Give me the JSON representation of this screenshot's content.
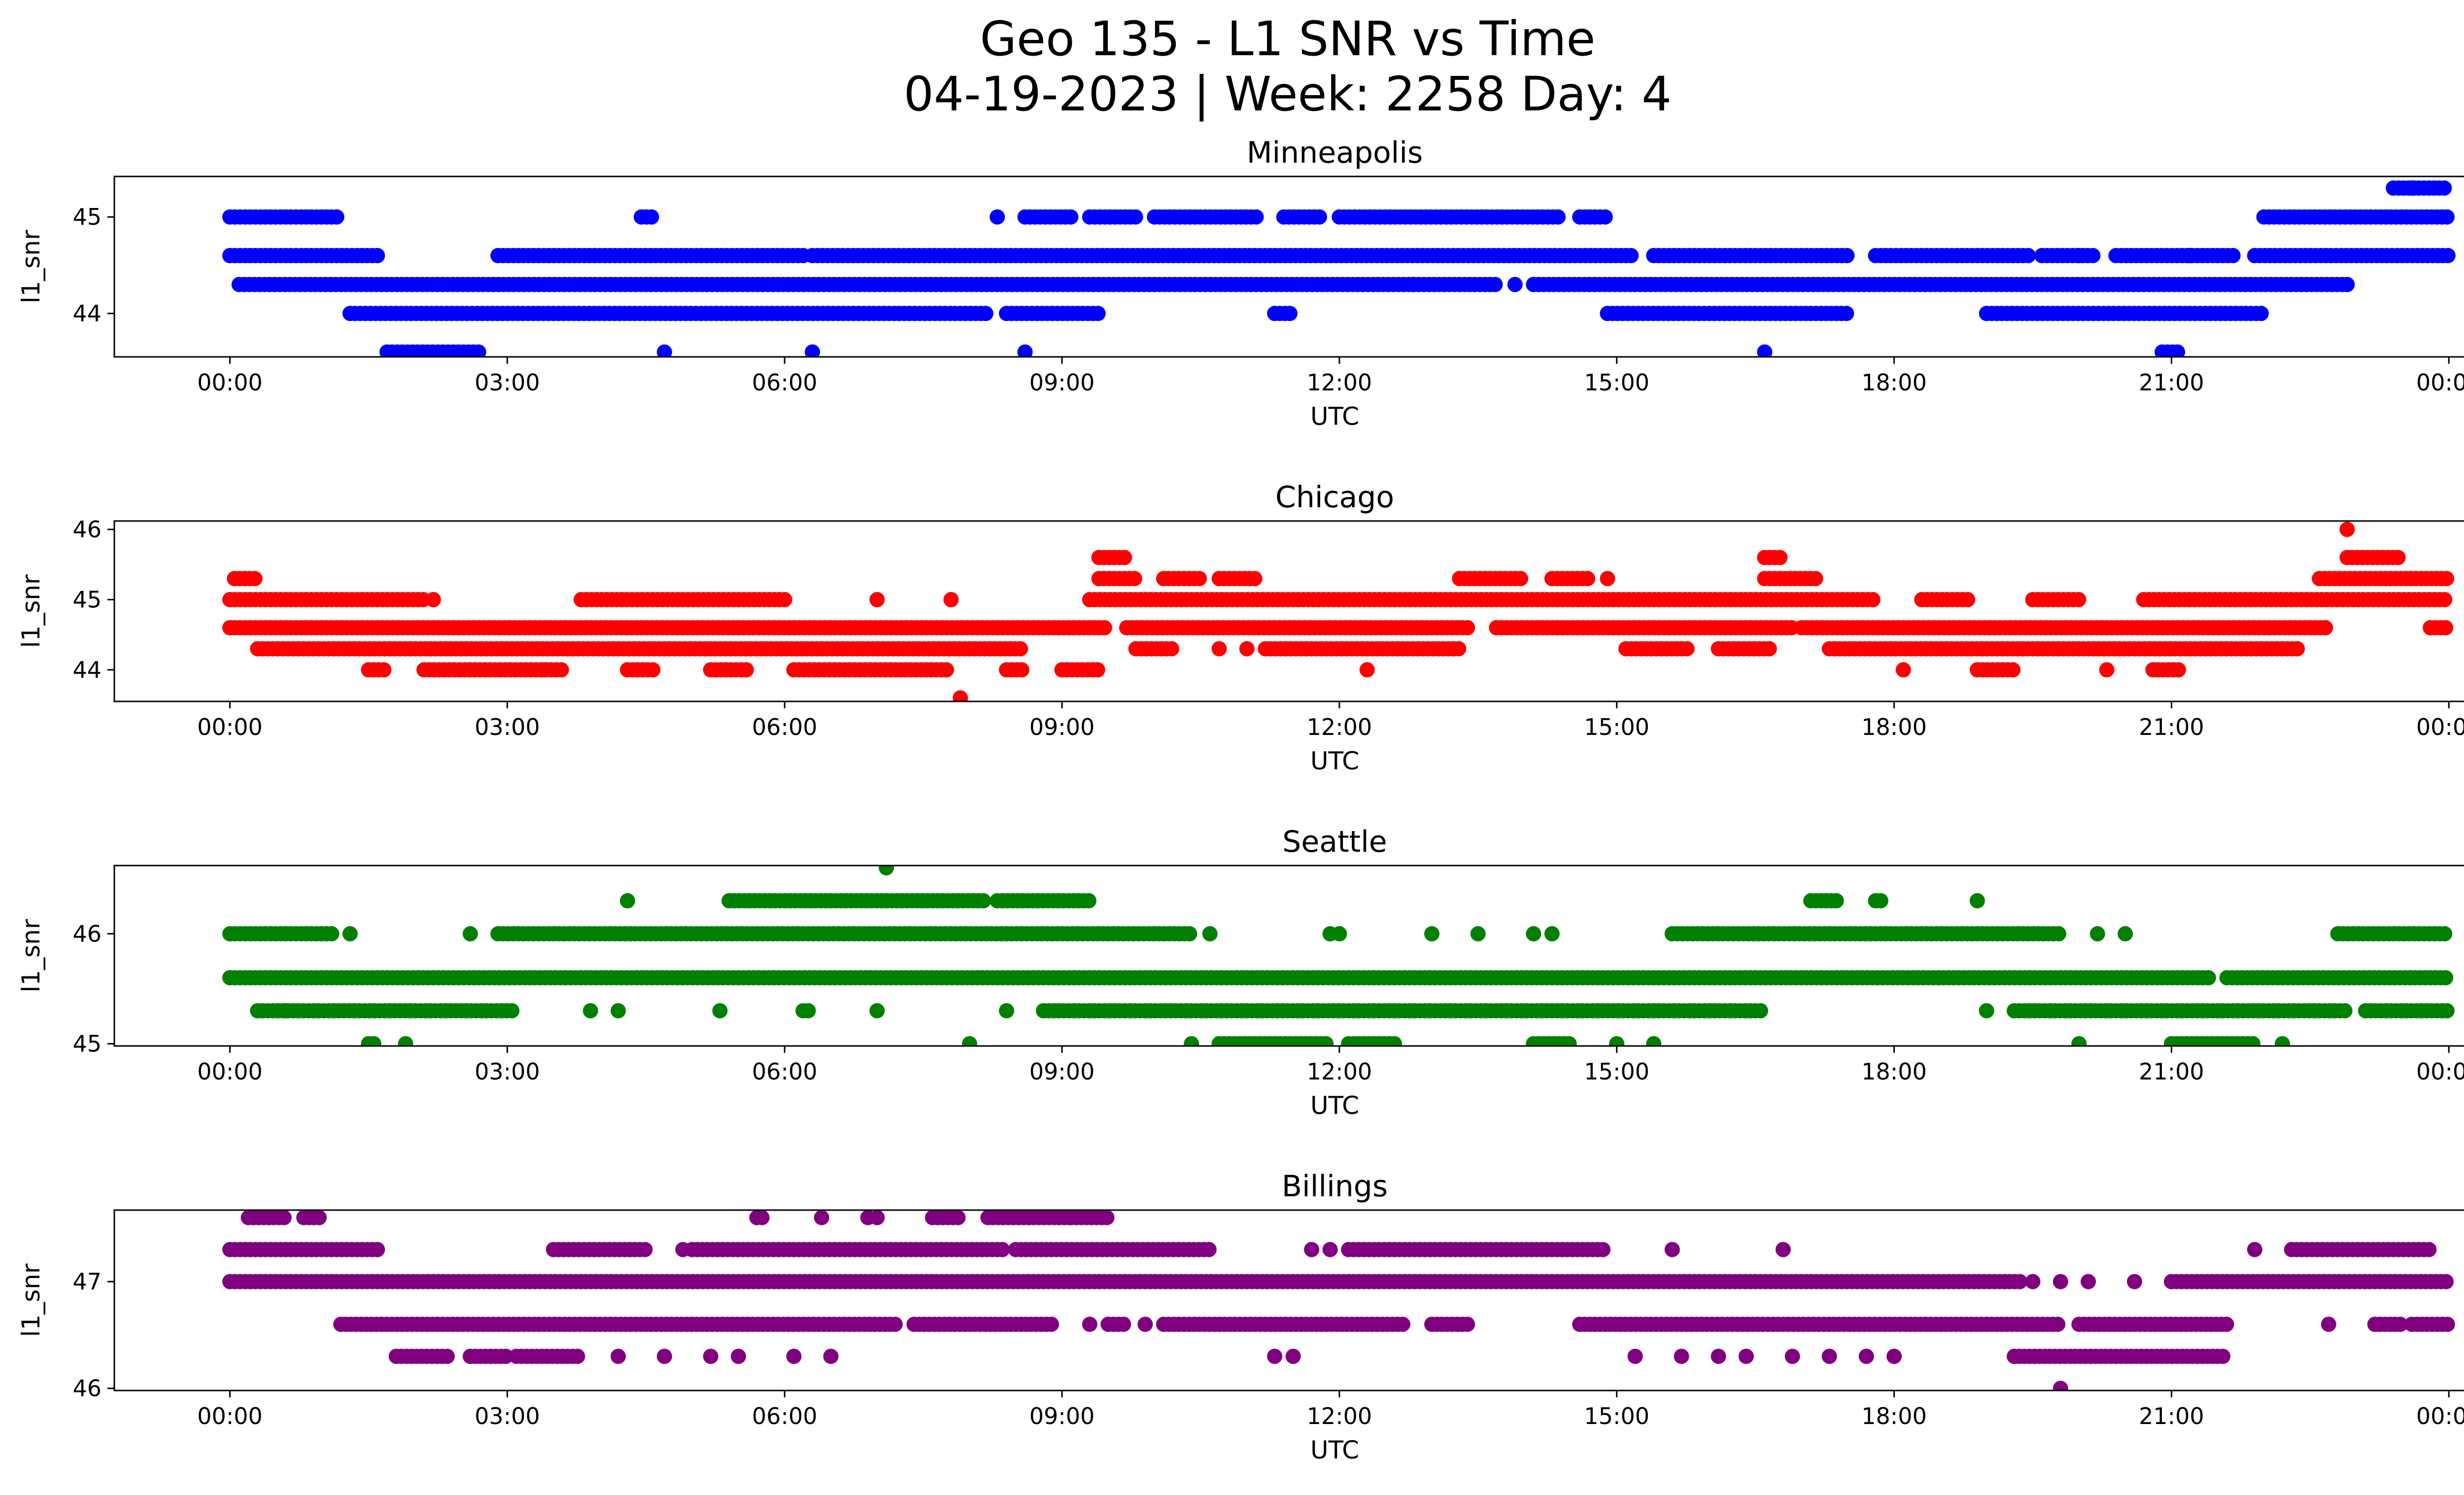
{
  "figure": {
    "title_line1": "Geo 135 - L1 SNR vs Time",
    "title_line2": "04-19-2023 | Week: 2258 Day: 4"
  },
  "chart_data": [
    {
      "type": "scatter",
      "title": "Minneapolis",
      "xlabel": "UTC",
      "ylabel": "l1_snr",
      "color": "#0000ff",
      "xlim": [
        -1.25,
        25.15
      ],
      "ylim": [
        43.55,
        45.42
      ],
      "x_ticks": [
        0,
        3,
        6,
        9,
        12,
        15,
        18,
        21,
        24
      ],
      "x_tick_labels": [
        "00:00",
        "03:00",
        "06:00",
        "09:00",
        "12:00",
        "15:00",
        "18:00",
        "21:00",
        "00:00"
      ],
      "y_ticks": [
        44,
        45
      ],
      "y_tick_labels": [
        "44",
        "45"
      ],
      "segments": [
        {
          "y": 45.0,
          "ranges": [
            [
              0.0,
              1.2
            ],
            [
              4.45,
              4.6
            ],
            [
              8.3,
              8.35
            ],
            [
              8.6,
              9.1
            ],
            [
              9.3,
              9.8
            ],
            [
              10.0,
              11.1
            ],
            [
              11.4,
              11.8
            ],
            [
              12.0,
              14.4
            ],
            [
              14.6,
              14.9
            ],
            [
              22.0,
              24.0
            ]
          ]
        },
        {
          "y": 45.3,
          "ranges": [
            [
              23.4,
              24.0
            ]
          ]
        },
        {
          "y": 44.6,
          "ranges": [
            [
              0.0,
              1.6
            ],
            [
              2.9,
              6.2
            ],
            [
              6.3,
              15.2
            ],
            [
              15.4,
              17.5
            ],
            [
              17.8,
              19.5
            ],
            [
              19.6,
              20.2
            ],
            [
              20.4,
              21.7
            ],
            [
              21.9,
              24.0
            ]
          ]
        },
        {
          "y": 44.3,
          "ranges": [
            [
              0.1,
              13.7
            ],
            [
              14.1,
              22.9
            ]
          ]
        },
        {
          "y": 44.0,
          "ranges": [
            [
              1.3,
              8.2
            ],
            [
              8.4,
              9.4
            ],
            [
              11.3,
              11.5
            ],
            [
              14.9,
              17.5
            ],
            [
              19.0,
              22.0
            ]
          ]
        },
        {
          "y": 43.6,
          "ranges": [
            [
              1.7,
              2.7
            ],
            [
              20.9,
              21.1
            ]
          ]
        }
      ],
      "points": [
        {
          "x": 4.7,
          "y": 43.6
        },
        {
          "x": 6.3,
          "y": 43.6
        },
        {
          "x": 8.6,
          "y": 43.6
        },
        {
          "x": 16.6,
          "y": 43.6
        },
        {
          "x": 12.8,
          "y": 44.3
        },
        {
          "x": 13.9,
          "y": 44.3
        },
        {
          "x": 23.6,
          "y": 45.3
        },
        {
          "x": 20.0,
          "y": 44.6
        },
        {
          "x": 21.2,
          "y": 44.6
        }
      ]
    },
    {
      "type": "scatter",
      "title": "Chicago",
      "xlabel": "UTC",
      "ylabel": "l1_snr",
      "color": "#ff0000",
      "xlim": [
        -1.25,
        25.15
      ],
      "ylim": [
        43.55,
        46.12
      ],
      "x_ticks": [
        0,
        3,
        6,
        9,
        12,
        15,
        18,
        21,
        24
      ],
      "x_tick_labels": [
        "00:00",
        "03:00",
        "06:00",
        "09:00",
        "12:00",
        "15:00",
        "18:00",
        "21:00",
        "00:00"
      ],
      "y_ticks": [
        44,
        45,
        46
      ],
      "y_tick_labels": [
        "44",
        "45",
        "46"
      ],
      "segments": [
        {
          "y": 45.6,
          "ranges": [
            [
              9.4,
              9.7
            ],
            [
              16.6,
              16.8
            ],
            [
              22.9,
              23.5
            ]
          ]
        },
        {
          "y": 45.3,
          "ranges": [
            [
              0.05,
              0.3
            ],
            [
              9.4,
              9.8
            ],
            [
              10.1,
              10.5
            ],
            [
              10.7,
              11.1
            ],
            [
              13.3,
              14.0
            ],
            [
              14.3,
              14.7
            ],
            [
              16.6,
              17.2
            ],
            [
              22.6,
              24.0
            ]
          ]
        },
        {
          "y": 45.0,
          "ranges": [
            [
              0.0,
              2.1
            ],
            [
              3.8,
              6.0
            ],
            [
              9.3,
              17.8
            ],
            [
              18.3,
              18.8
            ],
            [
              19.5,
              20.0
            ],
            [
              20.7,
              22.8
            ],
            [
              22.8,
              24.0
            ]
          ]
        },
        {
          "y": 44.6,
          "ranges": [
            [
              0.0,
              9.5
            ],
            [
              9.7,
              13.4
            ],
            [
              13.7,
              16.9
            ],
            [
              17.0,
              22.7
            ],
            [
              23.8,
              24.0
            ]
          ]
        },
        {
          "y": 44.3,
          "ranges": [
            [
              0.3,
              8.6
            ],
            [
              9.8,
              10.2
            ],
            [
              11.2,
              13.3
            ],
            [
              15.1,
              15.8
            ],
            [
              16.1,
              16.7
            ],
            [
              17.3,
              22.4
            ]
          ]
        },
        {
          "y": 44.0,
          "ranges": [
            [
              1.5,
              1.7
            ],
            [
              2.1,
              3.6
            ],
            [
              4.3,
              4.6
            ],
            [
              5.2,
              5.6
            ],
            [
              6.1,
              7.8
            ],
            [
              8.4,
              8.6
            ],
            [
              9.0,
              9.4
            ],
            [
              18.9,
              19.3
            ],
            [
              20.8,
              21.1
            ]
          ]
        }
      ],
      "points": [
        {
          "x": 7.9,
          "y": 43.6
        },
        {
          "x": 12.3,
          "y": 44.0
        },
        {
          "x": 18.1,
          "y": 44.0
        },
        {
          "x": 20.3,
          "y": 44.0
        },
        {
          "x": 22.9,
          "y": 46.0
        },
        {
          "x": 3.4,
          "y": 44.0
        },
        {
          "x": 10.7,
          "y": 44.3
        },
        {
          "x": 11.0,
          "y": 44.3
        },
        {
          "x": 7.0,
          "y": 45.0
        },
        {
          "x": 7.8,
          "y": 45.0
        },
        {
          "x": 2.2,
          "y": 45.0
        },
        {
          "x": 14.9,
          "y": 45.3
        }
      ]
    },
    {
      "type": "scatter",
      "title": "Seattle",
      "xlabel": "UTC",
      "ylabel": "l1_snr",
      "color": "#008000",
      "xlim": [
        -1.25,
        25.15
      ],
      "ylim": [
        44.98,
        46.62
      ],
      "x_ticks": [
        0,
        3,
        6,
        9,
        12,
        15,
        18,
        21,
        24
      ],
      "x_tick_labels": [
        "00:00",
        "03:00",
        "06:00",
        "09:00",
        "12:00",
        "15:00",
        "18:00",
        "21:00",
        "00:00"
      ],
      "y_ticks": [
        45,
        46
      ],
      "y_tick_labels": [
        "45",
        "46"
      ],
      "segments": [
        {
          "y": 46.6,
          "ranges": [
            [
              7.1,
              7.1
            ]
          ]
        },
        {
          "y": 46.3,
          "ranges": [
            [
              5.4,
              8.2
            ],
            [
              8.3,
              9.3
            ],
            [
              17.1,
              17.4
            ],
            [
              17.8,
              17.9
            ]
          ]
        },
        {
          "y": 46.0,
          "ranges": [
            [
              0.0,
              1.1
            ],
            [
              2.9,
              10.4
            ],
            [
              15.6,
              19.8
            ],
            [
              22.8,
              24.0
            ]
          ]
        },
        {
          "y": 45.6,
          "ranges": [
            [
              0.0,
              21.4
            ],
            [
              21.6,
              24.0
            ]
          ]
        },
        {
          "y": 45.3,
          "ranges": [
            [
              0.3,
              3.1
            ],
            [
              6.2,
              6.3
            ],
            [
              8.8,
              16.6
            ],
            [
              19.3,
              22.9
            ],
            [
              23.1,
              24.0
            ]
          ]
        },
        {
          "y": 45.0,
          "ranges": [
            [
              1.5,
              1.6
            ],
            [
              10.7,
              11.9
            ],
            [
              12.1,
              12.6
            ],
            [
              14.1,
              14.5
            ],
            [
              21.0,
              21.9
            ]
          ]
        }
      ],
      "points": [
        {
          "x": 1.3,
          "y": 46.0
        },
        {
          "x": 2.6,
          "y": 46.0
        },
        {
          "x": 10.6,
          "y": 46.0
        },
        {
          "x": 11.9,
          "y": 46.0
        },
        {
          "x": 12.0,
          "y": 46.0
        },
        {
          "x": 13.0,
          "y": 46.0
        },
        {
          "x": 13.5,
          "y": 46.0
        },
        {
          "x": 14.1,
          "y": 46.0
        },
        {
          "x": 14.3,
          "y": 46.0
        },
        {
          "x": 20.2,
          "y": 46.0
        },
        {
          "x": 20.5,
          "y": 46.0
        },
        {
          "x": 4.3,
          "y": 46.3
        },
        {
          "x": 18.9,
          "y": 46.3
        },
        {
          "x": 0.6,
          "y": 45.3
        },
        {
          "x": 3.9,
          "y": 45.3
        },
        {
          "x": 4.2,
          "y": 45.3
        },
        {
          "x": 5.3,
          "y": 45.3
        },
        {
          "x": 7.0,
          "y": 45.3
        },
        {
          "x": 8.4,
          "y": 45.3
        },
        {
          "x": 19.0,
          "y": 45.3
        },
        {
          "x": 1.9,
          "y": 45.0
        },
        {
          "x": 8.0,
          "y": 45.0
        },
        {
          "x": 10.4,
          "y": 45.0
        },
        {
          "x": 15.0,
          "y": 45.0
        },
        {
          "x": 15.4,
          "y": 45.0
        },
        {
          "x": 20.0,
          "y": 45.0
        },
        {
          "x": 22.2,
          "y": 45.0
        },
        {
          "x": 21.4,
          "y": 45.6
        }
      ]
    },
    {
      "type": "scatter",
      "title": "Billings",
      "xlabel": "UTC",
      "ylabel": "l1_snr",
      "color": "#800080",
      "xlim": [
        -1.25,
        25.15
      ],
      "ylim": [
        45.98,
        47.67
      ],
      "x_ticks": [
        0,
        3,
        6,
        9,
        12,
        15,
        18,
        21,
        24
      ],
      "x_tick_labels": [
        "00:00",
        "03:00",
        "06:00",
        "09:00",
        "12:00",
        "15:00",
        "18:00",
        "21:00",
        "00:00"
      ],
      "y_ticks": [
        46,
        47
      ],
      "y_tick_labels": [
        "46",
        "47"
      ],
      "segments": [
        {
          "y": 47.6,
          "ranges": [
            [
              0.2,
              0.6
            ],
            [
              0.8,
              1.0
            ],
            [
              5.7,
              5.8
            ],
            [
              7.6,
              7.9
            ],
            [
              8.2,
              9.1
            ],
            [
              9.1,
              9.5
            ]
          ]
        },
        {
          "y": 47.3,
          "ranges": [
            [
              0.0,
              1.6
            ],
            [
              3.5,
              4.5
            ],
            [
              5.0,
              8.4
            ],
            [
              8.5,
              10.6
            ],
            [
              12.1,
              14.9
            ],
            [
              22.3,
              23.8
            ]
          ]
        },
        {
          "y": 47.0,
          "ranges": [
            [
              0.0,
              19.4
            ],
            [
              21.0,
              24.0
            ]
          ]
        },
        {
          "y": 46.6,
          "ranges": [
            [
              1.2,
              7.2
            ],
            [
              7.4,
              8.9
            ],
            [
              9.5,
              9.7
            ],
            [
              10.1,
              12.7
            ],
            [
              13.0,
              13.4
            ],
            [
              14.6,
              19.8
            ],
            [
              20.0,
              21.6
            ],
            [
              23.2,
              23.5
            ],
            [
              23.6,
              24.0
            ]
          ]
        },
        {
          "y": 46.3,
          "ranges": [
            [
              1.8,
              2.4
            ],
            [
              2.6,
              3.0
            ],
            [
              3.1,
              3.8
            ],
            [
              19.3,
              21.6
            ]
          ]
        }
      ],
      "points": [
        {
          "x": 4.2,
          "y": 46.3
        },
        {
          "x": 4.7,
          "y": 46.3
        },
        {
          "x": 5.2,
          "y": 46.3
        },
        {
          "x": 5.5,
          "y": 46.3
        },
        {
          "x": 6.1,
          "y": 46.3
        },
        {
          "x": 6.5,
          "y": 46.3
        },
        {
          "x": 11.3,
          "y": 46.3
        },
        {
          "x": 11.5,
          "y": 46.3
        },
        {
          "x": 15.2,
          "y": 46.3
        },
        {
          "x": 15.7,
          "y": 46.3
        },
        {
          "x": 16.1,
          "y": 46.3
        },
        {
          "x": 16.4,
          "y": 46.3
        },
        {
          "x": 16.9,
          "y": 46.3
        },
        {
          "x": 17.3,
          "y": 46.3
        },
        {
          "x": 17.7,
          "y": 46.3
        },
        {
          "x": 18.0,
          "y": 46.3
        },
        {
          "x": 19.8,
          "y": 46.0
        },
        {
          "x": 19.5,
          "y": 47.0
        },
        {
          "x": 19.8,
          "y": 47.0
        },
        {
          "x": 20.1,
          "y": 47.0
        },
        {
          "x": 20.6,
          "y": 47.0
        },
        {
          "x": 9.3,
          "y": 46.6
        },
        {
          "x": 9.9,
          "y": 46.6
        },
        {
          "x": 22.7,
          "y": 46.6
        },
        {
          "x": 6.4,
          "y": 47.6
        },
        {
          "x": 6.9,
          "y": 47.6
        },
        {
          "x": 7.0,
          "y": 47.6
        },
        {
          "x": 4.9,
          "y": 47.3
        },
        {
          "x": 11.7,
          "y": 47.3
        },
        {
          "x": 11.9,
          "y": 47.3
        },
        {
          "x": 15.6,
          "y": 47.3
        },
        {
          "x": 16.8,
          "y": 47.3
        },
        {
          "x": 21.9,
          "y": 47.3
        }
      ]
    }
  ]
}
